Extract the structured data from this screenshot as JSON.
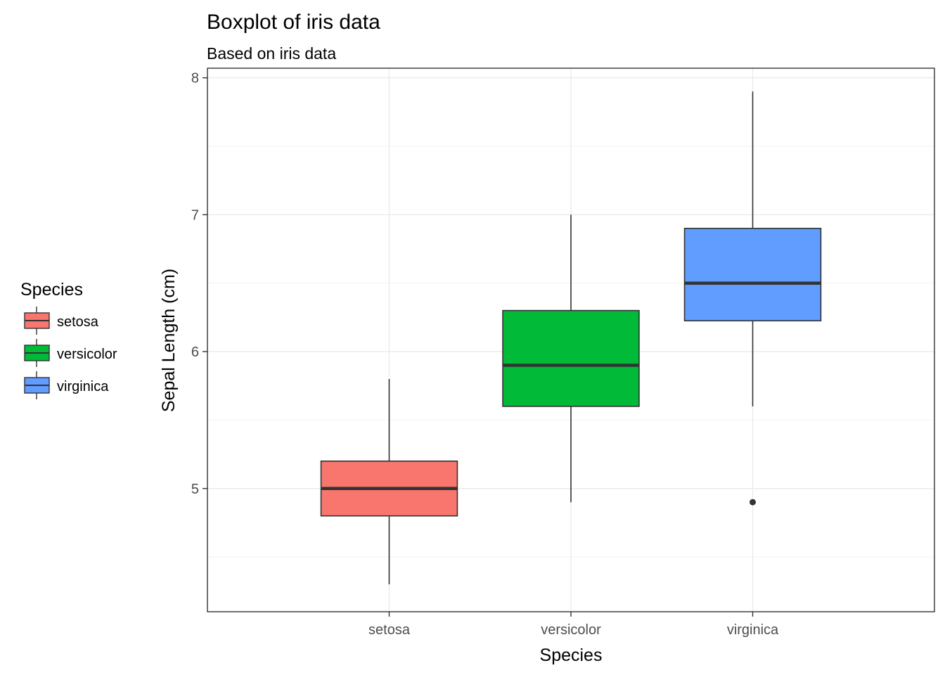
{
  "chart_data": {
    "type": "boxplot",
    "title": "Boxplot of iris data",
    "subtitle": "Based on iris data",
    "xlabel": "Species",
    "ylabel": "Sepal Length (cm)",
    "categories": [
      "setosa",
      "versicolor",
      "virginica"
    ],
    "ylim": [
      4.1,
      8.07
    ],
    "y_ticks": [
      5,
      6,
      7,
      8
    ],
    "y_tick_labels": [
      "5",
      "6",
      "7",
      "8"
    ],
    "grid": true,
    "boxes": [
      {
        "category": "setosa",
        "whisker_low": 4.3,
        "q1": 4.8,
        "median": 5.0,
        "q3": 5.2,
        "whisker_high": 5.8,
        "outliers": [],
        "color": "#F8766D"
      },
      {
        "category": "versicolor",
        "whisker_low": 4.9,
        "q1": 5.6,
        "median": 5.9,
        "q3": 6.3,
        "whisker_high": 7.0,
        "outliers": [],
        "color": "#00BA38"
      },
      {
        "category": "virginica",
        "whisker_low": 5.6,
        "q1": 6.225,
        "median": 6.5,
        "q3": 6.9,
        "whisker_high": 7.9,
        "outliers": [
          4.9
        ],
        "color": "#619CFF"
      }
    ],
    "legend": {
      "title": "Species",
      "position": "left",
      "items": [
        {
          "label": "setosa",
          "color": "#F8766D"
        },
        {
          "label": "versicolor",
          "color": "#00BA38"
        },
        {
          "label": "virginica",
          "color": "#619CFF"
        }
      ]
    }
  }
}
